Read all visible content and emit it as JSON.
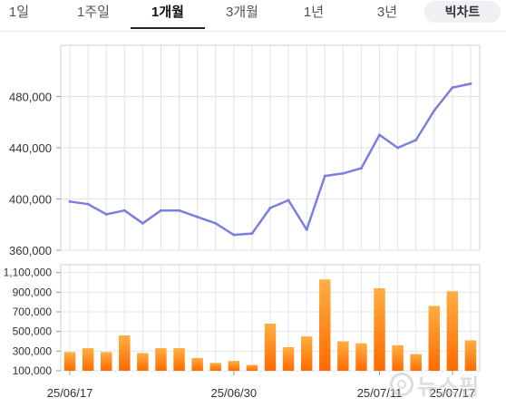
{
  "tabs": [
    {
      "label": "1일",
      "active": false
    },
    {
      "label": "1주일",
      "active": false
    },
    {
      "label": "1개월",
      "active": true
    },
    {
      "label": "3개월",
      "active": false
    },
    {
      "label": "1년",
      "active": false
    },
    {
      "label": "3년",
      "active": false
    },
    {
      "label": "빅차트",
      "active": false
    }
  ],
  "watermark": {
    "text": "뉴스핌"
  },
  "chart_data": [
    {
      "type": "line",
      "ylim": [
        360000,
        520000
      ],
      "yticks": [
        "480,000",
        "440,000",
        "400,000",
        "360,000"
      ],
      "ytick_values": [
        480000,
        440000,
        400000,
        360000
      ],
      "grid": true,
      "color": "#7b7fe0",
      "values": [
        398000,
        396000,
        388000,
        391000,
        381000,
        391000,
        391000,
        386000,
        381000,
        372000,
        373000,
        393000,
        399000,
        376000,
        418000,
        420000,
        424000,
        450000,
        440000,
        446000,
        469000,
        487000,
        490000
      ]
    },
    {
      "type": "bar",
      "ylim": [
        100000,
        1180000
      ],
      "yticks": [
        "1,100,000",
        "900,000",
        "700,000",
        "500,000",
        "300,000",
        "100,000"
      ],
      "ytick_values": [
        1100000,
        900000,
        700000,
        500000,
        300000,
        100000
      ],
      "grid": true,
      "color": "#ff7a10",
      "values": [
        290000,
        330000,
        290000,
        460000,
        280000,
        330000,
        330000,
        230000,
        180000,
        200000,
        160000,
        580000,
        340000,
        450000,
        1030000,
        400000,
        380000,
        940000,
        360000,
        270000,
        760000,
        910000,
        410000
      ],
      "xticks": [
        "25/06/17",
        "25/06/30",
        "25/07/11",
        "25/07/17"
      ]
    }
  ]
}
